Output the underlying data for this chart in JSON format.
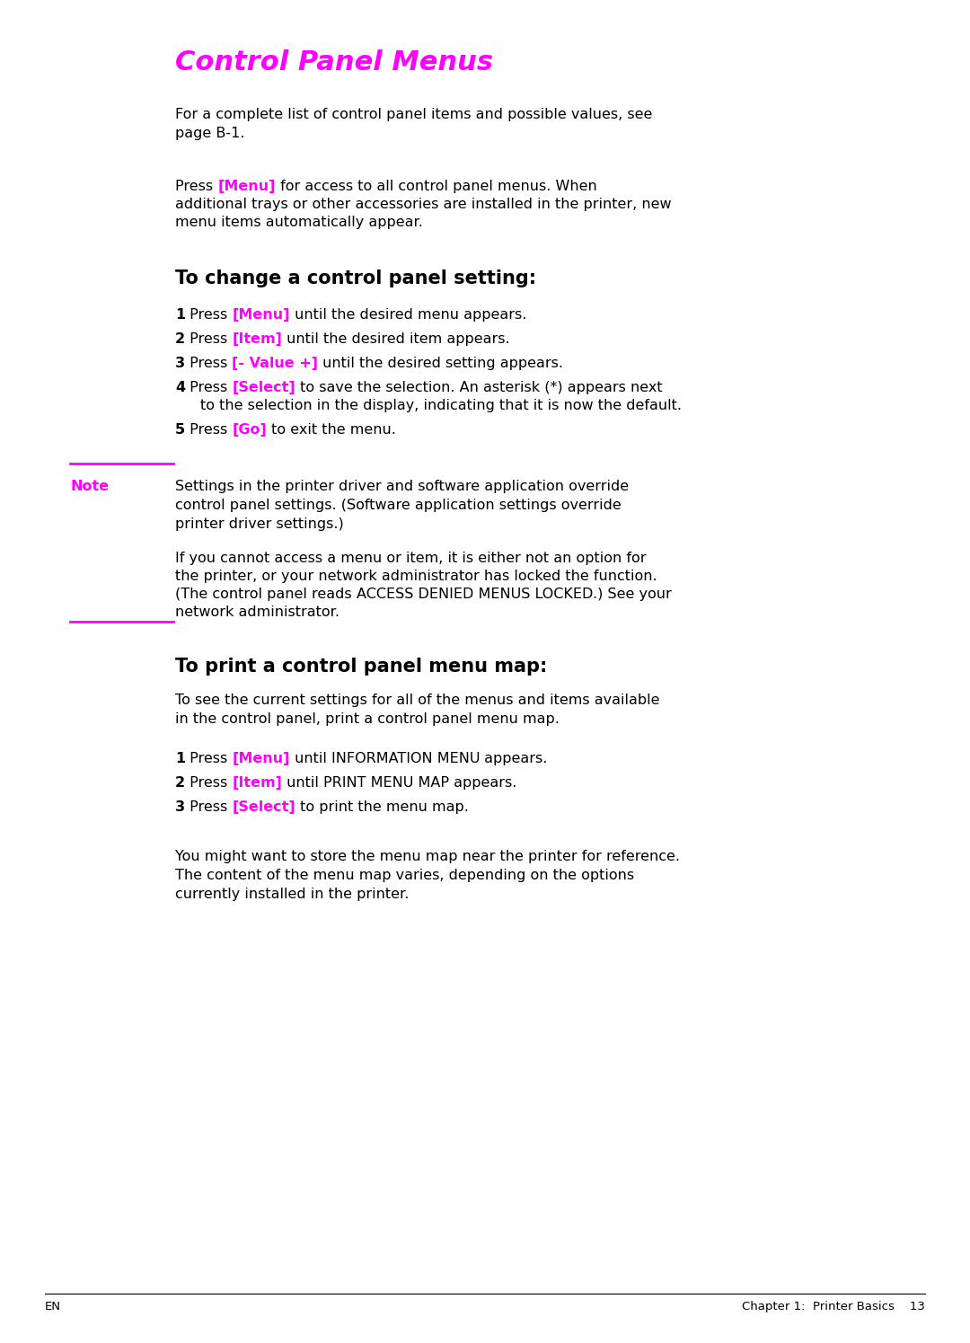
{
  "bg_color": "#ffffff",
  "magenta": "#ff00ff",
  "black": "#000000",
  "title": "Control Panel Menus",
  "title_fontsize": 22,
  "section2_title": "To change a control panel setting:",
  "section3_title": "To print a control panel menu map:",
  "body_fontsize": 11.5,
  "note_fontsize": 11.5,
  "section_title_fontsize": 15,
  "footer_left": "EN",
  "footer_right": "Chapter 1:  Printer Basics    13"
}
